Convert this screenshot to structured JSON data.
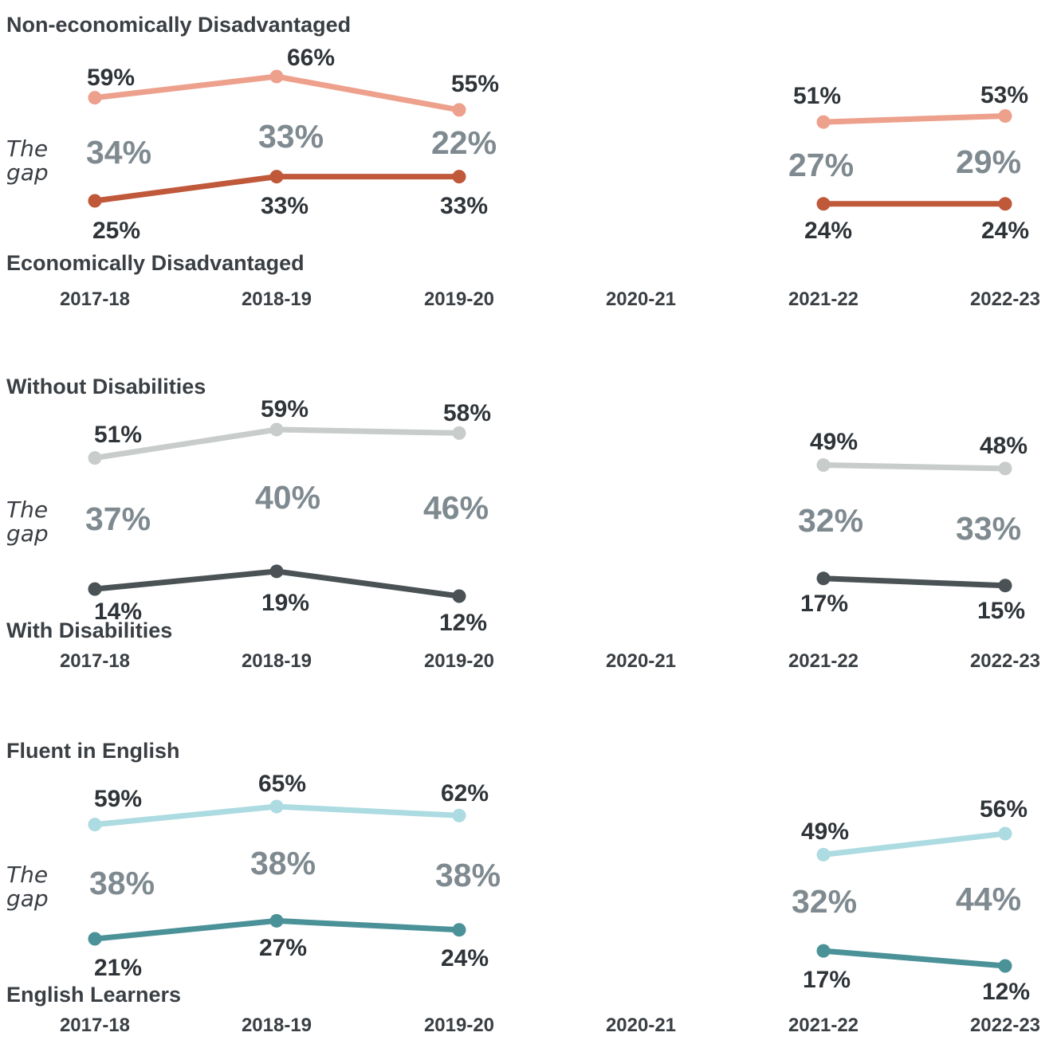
{
  "gap_label": [
    "The",
    "gap"
  ],
  "chart_data": [
    {
      "type": "line",
      "x": [
        "2017-18",
        "2018-19",
        "2019-20",
        "2020-21",
        "2021-22",
        "2022-23"
      ],
      "series": [
        {
          "name": "Non-economically Disadvantaged",
          "color": "#eda08c",
          "values": [
            59,
            66,
            55,
            null,
            51,
            53
          ],
          "labels": [
            "59%",
            "66%",
            "55%",
            "",
            "51%",
            "53%"
          ]
        },
        {
          "name": "Economically Disadvantaged",
          "color": "#c0583a",
          "values": [
            25,
            33,
            33,
            null,
            24,
            24
          ],
          "labels": [
            "25%",
            "33%",
            "33%",
            "",
            "24%",
            "24%"
          ]
        }
      ],
      "gap_values": [
        "34%",
        "33%",
        "22%",
        "",
        "27%",
        "29%"
      ],
      "units": "%"
    },
    {
      "type": "line",
      "x": [
        "2017-18",
        "2018-19",
        "2019-20",
        "2020-21",
        "2021-22",
        "2022-23"
      ],
      "series": [
        {
          "name": "Without Disabilities",
          "color": "#c8cccb",
          "values": [
            51,
            59,
            58,
            null,
            49,
            48
          ],
          "labels": [
            "51%",
            "59%",
            "58%",
            "",
            "49%",
            "48%"
          ]
        },
        {
          "name": "With Disabilities",
          "color": "#4a5255",
          "values": [
            14,
            19,
            12,
            null,
            17,
            15
          ],
          "labels": [
            "14%",
            "19%",
            "12%",
            "",
            "17%",
            "15%"
          ]
        }
      ],
      "gap_values": [
        "37%",
        "40%",
        "46%",
        "",
        "32%",
        "33%"
      ],
      "units": "%"
    },
    {
      "type": "line",
      "x": [
        "2017-18",
        "2018-19",
        "2019-20",
        "2020-21",
        "2021-22",
        "2022-23"
      ],
      "series": [
        {
          "name": "Fluent in English",
          "color": "#acdbe1",
          "values": [
            59,
            65,
            62,
            null,
            49,
            56
          ],
          "labels": [
            "59%",
            "65%",
            "62%",
            "",
            "49%",
            "56%"
          ]
        },
        {
          "name": "English Learners",
          "color": "#4a9198",
          "values": [
            21,
            27,
            24,
            null,
            17,
            12
          ],
          "labels": [
            "21%",
            "27%",
            "24%",
            "",
            "17%",
            "12%"
          ]
        }
      ],
      "gap_values": [
        "38%",
        "38%",
        "38%",
        "",
        "32%",
        "44%"
      ],
      "units": "%"
    }
  ]
}
